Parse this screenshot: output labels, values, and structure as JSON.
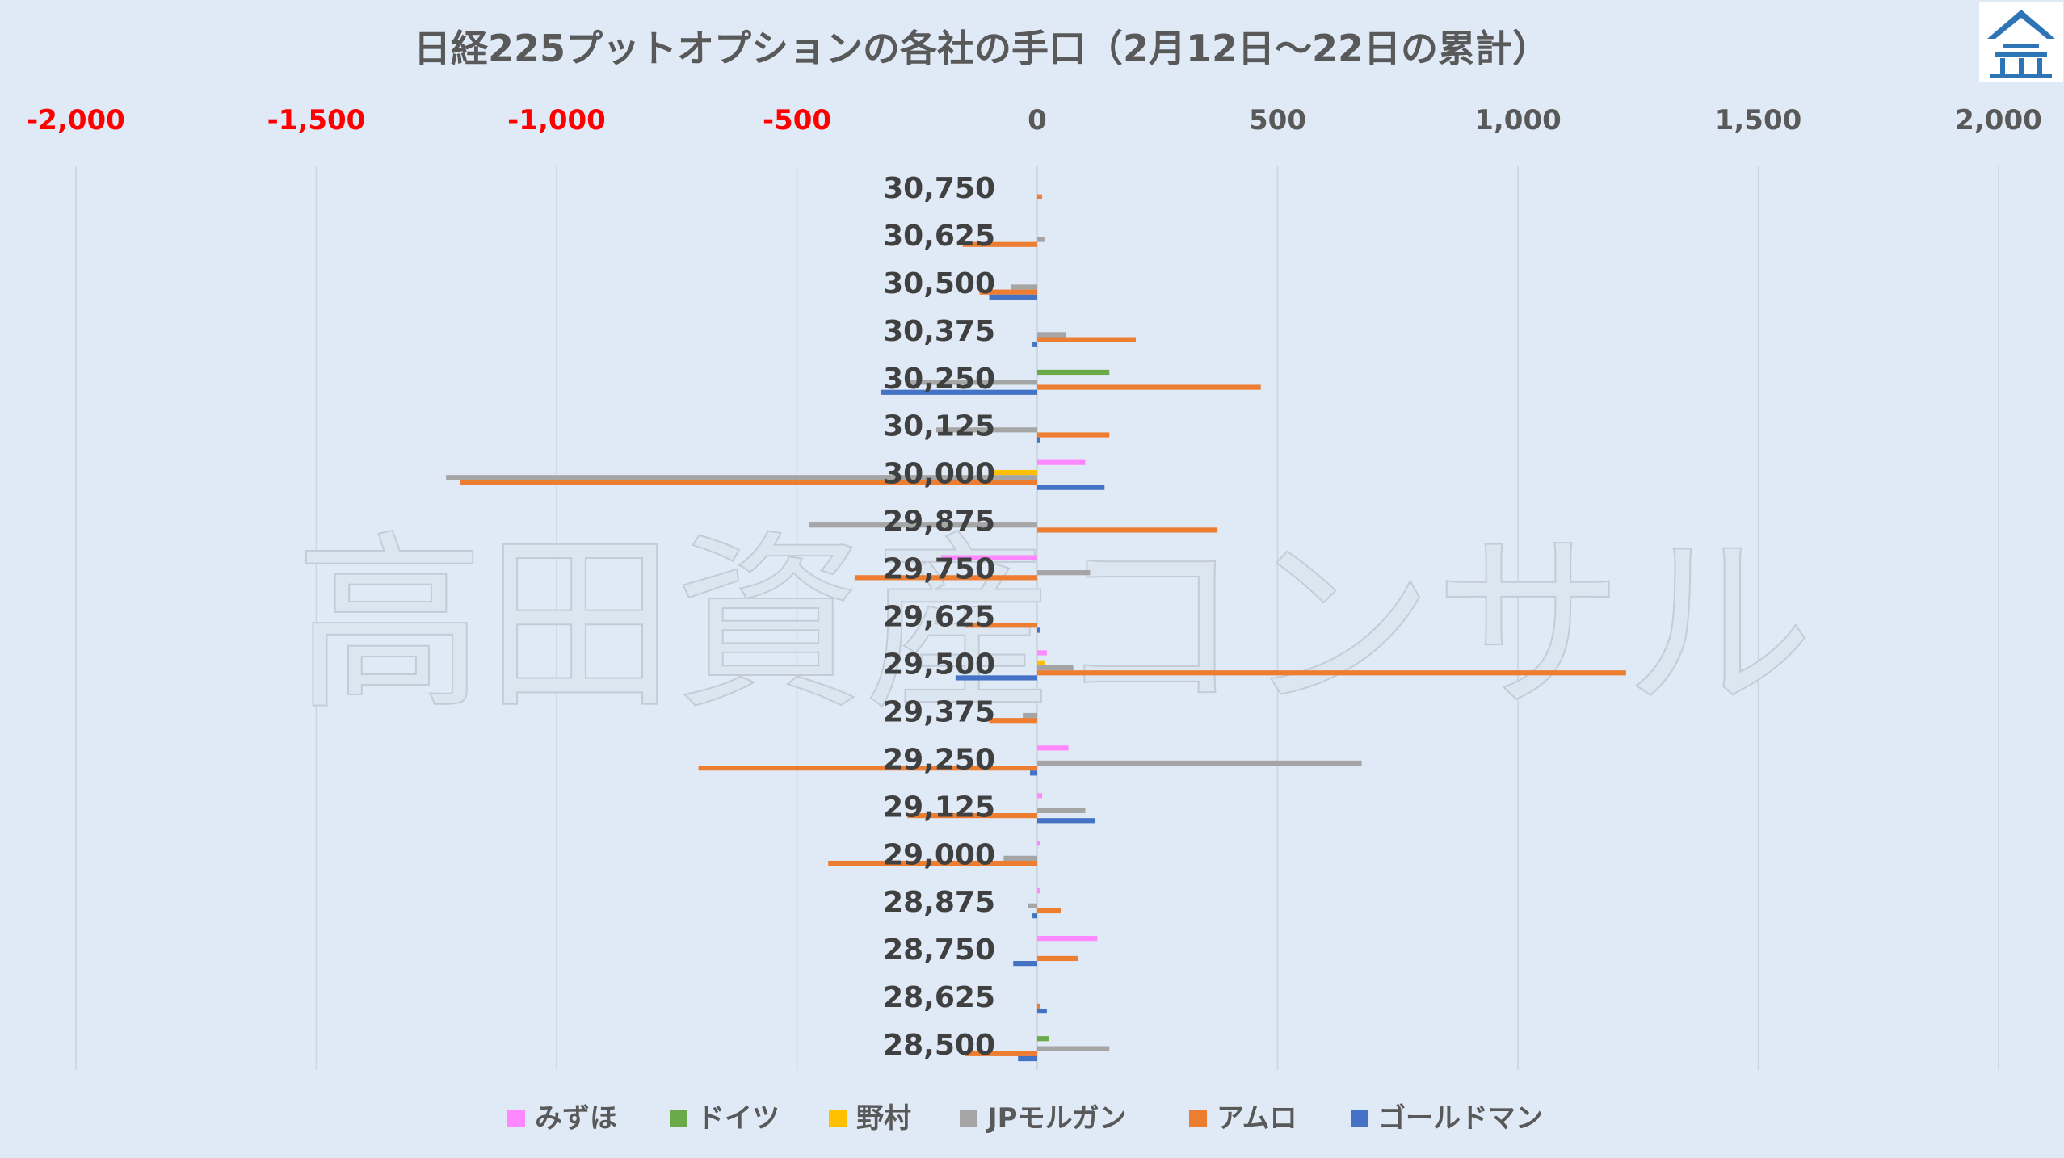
{
  "chart_data": {
    "type": "bar",
    "orientation": "horizontal",
    "title": "日経225プットオプションの各社の手口（2月12日～22日の累計）",
    "watermark": "高田資産コンサル",
    "xlim": [
      -2000,
      2000
    ],
    "x_ticks": [
      -2000,
      -1500,
      -1000,
      -500,
      0,
      500,
      1000,
      1500,
      2000
    ],
    "x_tick_labels": [
      "-2,000",
      "-1,500",
      "-1,000",
      "-500",
      "0",
      "500",
      "1,000",
      "1,500",
      "2,000"
    ],
    "negative_tick_color": "#ff0000",
    "grid": "vertical",
    "legend_position": "bottom",
    "categories": [
      "30,750",
      "30,625",
      "30,500",
      "30,375",
      "30,250",
      "30,125",
      "30,000",
      "29,875",
      "29,750",
      "29,625",
      "29,500",
      "29,375",
      "29,250",
      "29,125",
      "29,000",
      "28,875",
      "28,750",
      "28,625",
      "28,500"
    ],
    "series": [
      {
        "name": "みずほ",
        "color": "#ff88ff",
        "values": [
          0,
          0,
          0,
          0,
          0,
          0,
          100,
          0,
          -200,
          0,
          20,
          0,
          65,
          10,
          5,
          5,
          125,
          0,
          0
        ]
      },
      {
        "name": "ドイツ",
        "color": "#6aaa48",
        "values": [
          0,
          0,
          0,
          0,
          150,
          0,
          0,
          0,
          0,
          0,
          0,
          0,
          0,
          0,
          0,
          0,
          0,
          0,
          25
        ]
      },
      {
        "name": "野村",
        "color": "#ffc000",
        "values": [
          0,
          0,
          0,
          0,
          0,
          0,
          -95,
          0,
          0,
          0,
          15,
          0,
          0,
          0,
          0,
          0,
          0,
          0,
          0
        ]
      },
      {
        "name": "JPモルガン",
        "color": "#a5a5a5",
        "values": [
          0,
          15,
          -55,
          60,
          -270,
          -210,
          -1230,
          -475,
          110,
          0,
          75,
          -30,
          675,
          100,
          -70,
          -20,
          0,
          0,
          150
        ]
      },
      {
        "name": "アムロ",
        "color": "#ed7d31",
        "values": [
          10,
          -155,
          -120,
          205,
          465,
          150,
          -1200,
          375,
          -380,
          -150,
          1225,
          -100,
          -705,
          -270,
          -435,
          50,
          85,
          5,
          -150
        ]
      },
      {
        "name": "ゴールドマン",
        "color": "#4472c4",
        "values": [
          0,
          0,
          -100,
          -10,
          -325,
          5,
          140,
          0,
          0,
          5,
          -170,
          0,
          -15,
          120,
          0,
          -10,
          -50,
          20,
          -40
        ]
      }
    ]
  }
}
